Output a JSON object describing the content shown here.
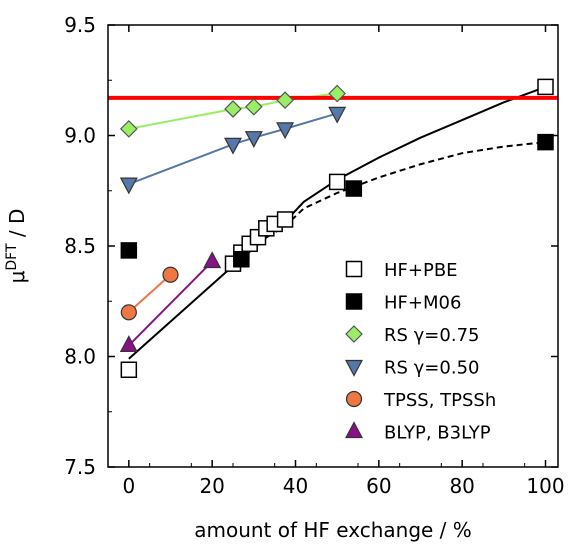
{
  "chart_data": {
    "type": "scatter",
    "xlabel": "amount of HF exchange / %",
    "ylabel": {
      "base": "μ",
      "sup": "DFT",
      "rest": " / D"
    },
    "xlim": [
      -5,
      103
    ],
    "ylim": [
      7.5,
      9.5
    ],
    "x_ticks": [
      0,
      20,
      40,
      60,
      80,
      100
    ],
    "y_ticks": [
      7.5,
      8.0,
      8.5,
      9.0,
      9.5
    ],
    "y_tick_labels": [
      "7.5",
      "8.0",
      "8.5",
      "9.0",
      "9.5"
    ],
    "grid": false,
    "legend_position": "bottom-right",
    "reference_line": {
      "y": 9.17,
      "color": "#ff0000"
    },
    "series": [
      {
        "name": "HF+PBE",
        "marker": "square",
        "fill": "#ffffff",
        "stroke": "#000000",
        "x": [
          0,
          25,
          27,
          29,
          31,
          33,
          35,
          37.5,
          50,
          100
        ],
        "y": [
          7.94,
          8.42,
          8.47,
          8.51,
          8.54,
          8.58,
          8.6,
          8.62,
          8.79,
          9.22
        ]
      },
      {
        "name": "HF+M06",
        "marker": "square",
        "fill": "#000000",
        "stroke": "#000000",
        "x": [
          0,
          27,
          54,
          100
        ],
        "y": [
          8.48,
          8.44,
          8.76,
          8.97
        ]
      },
      {
        "name": "RS γ=0.75",
        "marker": "diamond",
        "fill": "#99ee66",
        "stroke": "#555555",
        "line": "#99ee66",
        "x": [
          0,
          25,
          30,
          37.5,
          50
        ],
        "y": [
          9.03,
          9.12,
          9.13,
          9.16,
          9.19
        ]
      },
      {
        "name": "RS γ=0.50",
        "marker": "triangle-down",
        "fill": "#5577aa",
        "stroke": "#333333",
        "line": "#5577aa",
        "x": [
          0,
          25,
          30,
          37.5,
          50
        ],
        "y": [
          8.78,
          8.96,
          8.99,
          9.03,
          9.1
        ]
      },
      {
        "name": "TPSS, TPSSh",
        "marker": "circle",
        "fill": "#ee7744",
        "stroke": "#333333",
        "line": "#ee7744",
        "x": [
          0,
          10
        ],
        "y": [
          8.2,
          8.37
        ]
      },
      {
        "name": "BLYP, B3LYP",
        "marker": "triangle-up",
        "fill": "#881188",
        "stroke": "#333333",
        "line": "#881188",
        "x": [
          0,
          20
        ],
        "y": [
          8.05,
          8.43
        ]
      }
    ],
    "fit_curves": [
      {
        "style": "solid",
        "color": "#000000",
        "x": [
          0,
          25,
          37.5,
          42,
          50,
          60,
          70,
          80,
          90,
          100
        ],
        "y": [
          7.99,
          8.41,
          8.61,
          8.7,
          8.8,
          8.9,
          8.99,
          9.07,
          9.15,
          9.22
        ]
      },
      {
        "style": "dashed",
        "color": "#000000",
        "x": [
          27,
          37.5,
          42,
          50,
          60,
          70,
          80,
          90,
          100
        ],
        "y": [
          8.47,
          8.59,
          8.67,
          8.74,
          8.81,
          8.87,
          8.92,
          8.95,
          8.97
        ]
      }
    ]
  }
}
